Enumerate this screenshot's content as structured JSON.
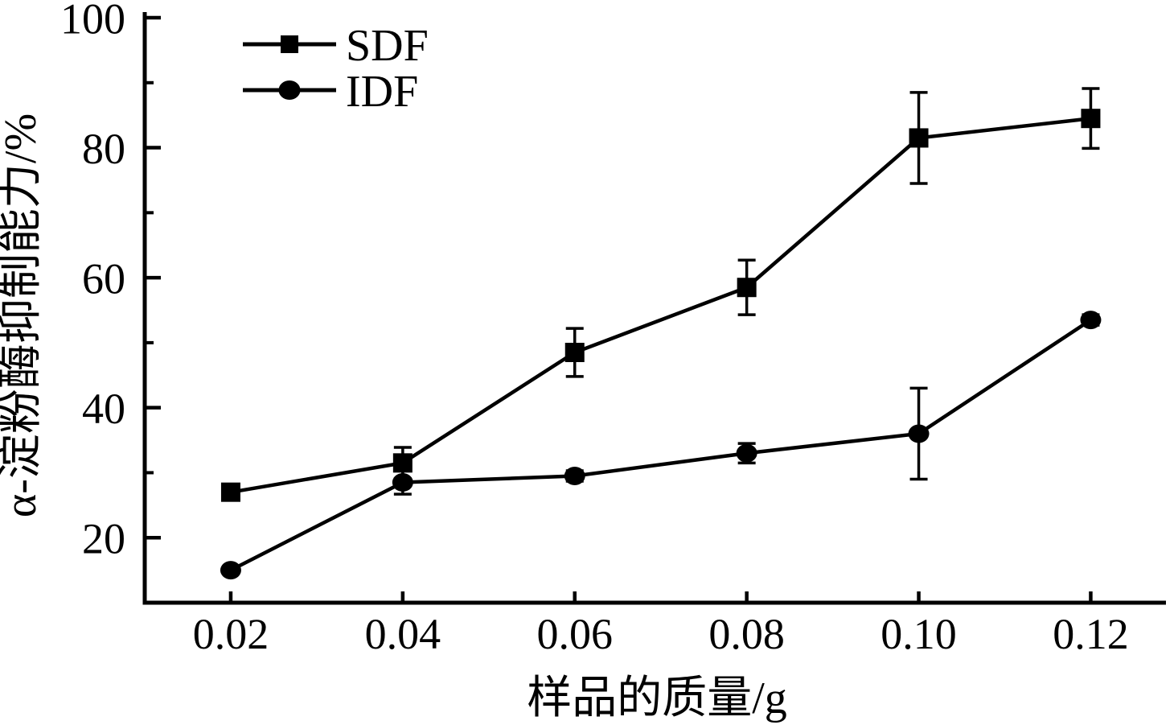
{
  "chart_data": {
    "type": "line",
    "title": "",
    "xlabel": "样品的质量/g",
    "ylabel": "α-淀粉酶抑制能力/%",
    "x": [
      0.02,
      0.04,
      0.06,
      0.08,
      0.1,
      0.12
    ],
    "x_tick_labels": [
      "0.02",
      "0.04",
      "0.06",
      "0.08",
      "0.10",
      "0.12"
    ],
    "y_ticks": [
      20,
      40,
      60,
      80,
      100
    ],
    "y_minor_ticks": [
      30,
      50,
      70,
      90
    ],
    "xlim": [
      0.01,
      0.128
    ],
    "ylim": [
      10,
      100
    ],
    "grid": false,
    "legend_position": "top-left-inside",
    "series": [
      {
        "name": "SDF",
        "marker": "square",
        "color": "#000000",
        "values": [
          27,
          31.5,
          48.5,
          58.5,
          81.5,
          84.5
        ],
        "errors": [
          0.8,
          2.4,
          3.7,
          4.2,
          7.0,
          4.6
        ]
      },
      {
        "name": "IDF",
        "marker": "circle",
        "color": "#000000",
        "values": [
          15,
          28.5,
          29.5,
          33,
          36,
          53.5
        ],
        "errors": [
          0.5,
          1.8,
          0.8,
          1.5,
          7.0,
          0.8
        ]
      }
    ]
  },
  "colors": {
    "foreground": "#000000",
    "background": "#ffffff"
  }
}
